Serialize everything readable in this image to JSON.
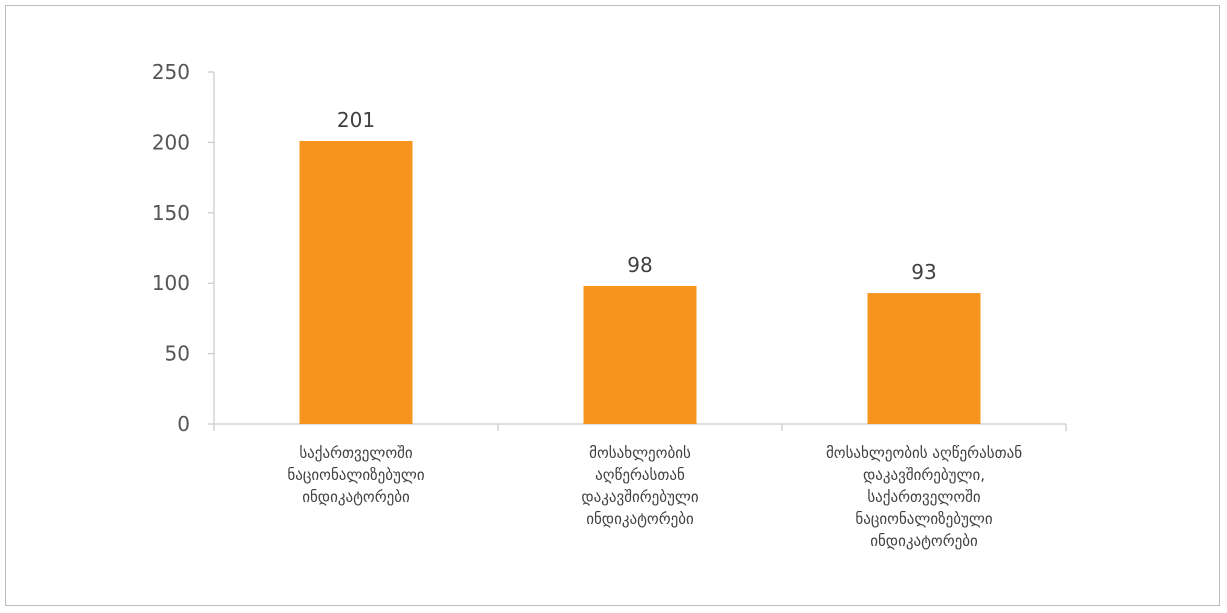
{
  "chart_data": {
    "type": "bar",
    "categories": [
      [
        "საქართველოში",
        "ნაციონალიზებული",
        "ინდიკატორები"
      ],
      [
        "მოსახლეობის",
        "აღწერასთან",
        "დაკავშირებული",
        "ინდიკატორები"
      ],
      [
        "მოსახლეობის აღწერასთან",
        "დაკავშირებული,",
        "საქართველოში",
        "ნაციონალიზებული",
        "ინდიკატორები"
      ]
    ],
    "values": [
      201,
      98,
      93
    ],
    "data_labels": [
      "201",
      "98",
      "93"
    ],
    "ylim": [
      0,
      250
    ],
    "yticks": [
      0,
      50,
      100,
      150,
      200,
      250
    ],
    "title": "",
    "xlabel": "",
    "ylabel": "",
    "grid": false,
    "colors": {
      "bar": "#F7941D",
      "axis": "#bfbfbf"
    }
  }
}
